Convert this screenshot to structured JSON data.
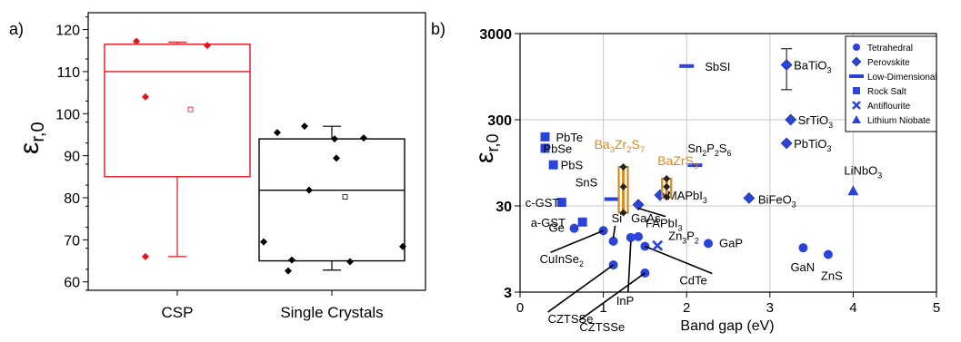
{
  "panel_a": {
    "label": "a)"
  },
  "panel_b": {
    "label": "b)"
  },
  "chart_data": [
    {
      "type": "box",
      "panel": "a)",
      "ylabel_main": "ε",
      "ylabel_sub": "r,0",
      "ylim": [
        58,
        124
      ],
      "yticks": [
        60,
        70,
        80,
        90,
        100,
        110,
        120
      ],
      "categories": [
        "CSP",
        "Single Crystals"
      ],
      "boxes": [
        {
          "category": "CSP",
          "color": "#e0141e",
          "q1": 85,
          "median": 110,
          "q3": 116.5,
          "whisker_low": 66,
          "whisker_high": 117,
          "mean": 101,
          "points": [
            117.2,
            116.2,
            104,
            66
          ]
        },
        {
          "category": "Single Crystals",
          "color": "#000000",
          "q1": 65,
          "median": 81.8,
          "q3": 94,
          "whisker_low": 62.8,
          "whisker_high": 97,
          "mean": 80.2,
          "points": [
            95.5,
            97,
            94,
            94.2,
            89.4,
            81.8,
            69.5,
            68.4,
            65.2,
            64.8,
            62.6
          ]
        }
      ]
    },
    {
      "type": "scatter",
      "panel": "b)",
      "xlabel": "Band gap (eV)",
      "ylabel_main": "ε",
      "ylabel_sub": "r,0",
      "xlim": [
        0,
        5
      ],
      "ylim": [
        3,
        3000
      ],
      "yscale": "log",
      "xticks": [
        0,
        1,
        2,
        3,
        4,
        5
      ],
      "yticks": [
        3,
        30,
        300,
        3000
      ],
      "grid": true,
      "legend_position": "top-right",
      "legend": [
        {
          "name": "Tetrahedral",
          "marker": "circle"
        },
        {
          "name": "Perovskite",
          "marker": "diamond"
        },
        {
          "name": "Low-Dimensional",
          "marker": "dash"
        },
        {
          "name": "Rock Salt",
          "marker": "square"
        },
        {
          "name": "Antiflourite",
          "marker": "cross"
        },
        {
          "name": "Lithium Niobate",
          "marker": "triangle"
        }
      ],
      "marker_color": "#2a44d8",
      "highlight_color": "#d98a1e",
      "points": [
        {
          "x": 0.65,
          "y": 16.5,
          "marker": "circle",
          "label": "Ge"
        },
        {
          "x": 1.0,
          "y": 15.5,
          "marker": "circle",
          "label": "CuInSe",
          "label_sub": "2"
        },
        {
          "x": 1.12,
          "y": 6.2,
          "marker": "circle",
          "label": "CZTSSe"
        },
        {
          "x": 1.12,
          "y": 11.7,
          "marker": "circle",
          "label": "Si"
        },
        {
          "x": 1.33,
          "y": 12.9,
          "marker": "circle",
          "label": "InP"
        },
        {
          "x": 1.42,
          "y": 13.2,
          "marker": "circle",
          "label": "GaAs"
        },
        {
          "x": 1.5,
          "y": 10.2,
          "marker": "circle",
          "label": "CdTe"
        },
        {
          "x": 1.5,
          "y": 5.0,
          "marker": "circle",
          "label": "CZTSSe"
        },
        {
          "x": 2.26,
          "y": 11.0,
          "marker": "circle",
          "label": "GaP"
        },
        {
          "x": 3.4,
          "y": 9.8,
          "marker": "circle",
          "label": "GaN"
        },
        {
          "x": 3.7,
          "y": 8.2,
          "marker": "circle",
          "label": "ZnS"
        },
        {
          "x": 1.65,
          "y": 10.4,
          "marker": "cross",
          "label": "Zn",
          "label_parts": [
            "Zn",
            "3",
            "P",
            "2"
          ]
        },
        {
          "x": 0.3,
          "y": 190,
          "marker": "square",
          "label": "PbTe"
        },
        {
          "x": 0.3,
          "y": 140,
          "marker": "square",
          "label": "PbSe"
        },
        {
          "x": 0.4,
          "y": 90,
          "marker": "square",
          "label": "PbS"
        },
        {
          "x": 0.5,
          "y": 33,
          "marker": "square",
          "label": "c-GST"
        },
        {
          "x": 0.75,
          "y": 19.5,
          "marker": "square",
          "label": "a-GST"
        },
        {
          "x": 1.1,
          "y": 36,
          "marker": "dash",
          "label": "SnS"
        },
        {
          "x": 2.0,
          "y": 1260,
          "marker": "dash",
          "label": "SbSI"
        },
        {
          "x": 2.1,
          "y": 89,
          "marker": "dash",
          "label": "Sn2P2S6",
          "label_parts": [
            "Sn",
            "2",
            "P",
            "2",
            "S",
            "6"
          ]
        },
        {
          "x": 1.42,
          "y": 31,
          "marker": "diamond",
          "label": "FAPbI",
          "label_parts": [
            "FAPbI",
            "3"
          ]
        },
        {
          "x": 1.68,
          "y": 40,
          "marker": "diamond",
          "label": "MAPbI",
          "label_parts": [
            "MAPbI",
            "3"
          ]
        },
        {
          "x": 2.75,
          "y": 37,
          "marker": "diamond",
          "label": "BiFeO",
          "label_parts": [
            "BiFeO",
            "3"
          ]
        },
        {
          "x": 3.2,
          "y": 1300,
          "marker": "diamond",
          "label": "BaTiO",
          "label_parts": [
            "BaTiO",
            "3"
          ],
          "err": [
            670,
            2000
          ]
        },
        {
          "x": 3.25,
          "y": 300,
          "marker": "diamond",
          "label": "SrTiO",
          "label_parts": [
            "SrTiO",
            "3"
          ]
        },
        {
          "x": 3.2,
          "y": 160,
          "marker": "diamond",
          "label": "PbTiO",
          "label_parts": [
            "PbTiO",
            "3"
          ]
        },
        {
          "x": 4.0,
          "y": 45,
          "marker": "triangle",
          "label": "LiNbO",
          "label_parts": [
            "LiNbO",
            "3"
          ]
        }
      ],
      "highlight_points": [
        {
          "name": "Ba3Zr2S7",
          "label_parts": [
            "Ba",
            "3",
            "Zr",
            "2",
            "S",
            "7"
          ],
          "x": 1.24,
          "y": [
            25,
            50,
            85
          ]
        },
        {
          "name": "BaZrS3",
          "label_parts": [
            "BaZrS",
            "3"
          ],
          "x": 1.76,
          "y": [
            38,
            50,
            62
          ]
        }
      ],
      "x_labels": [
        "0",
        "1",
        "2",
        "3",
        "4",
        "5"
      ],
      "y_labels": [
        "3",
        "30",
        "300",
        "3000"
      ]
    }
  ]
}
